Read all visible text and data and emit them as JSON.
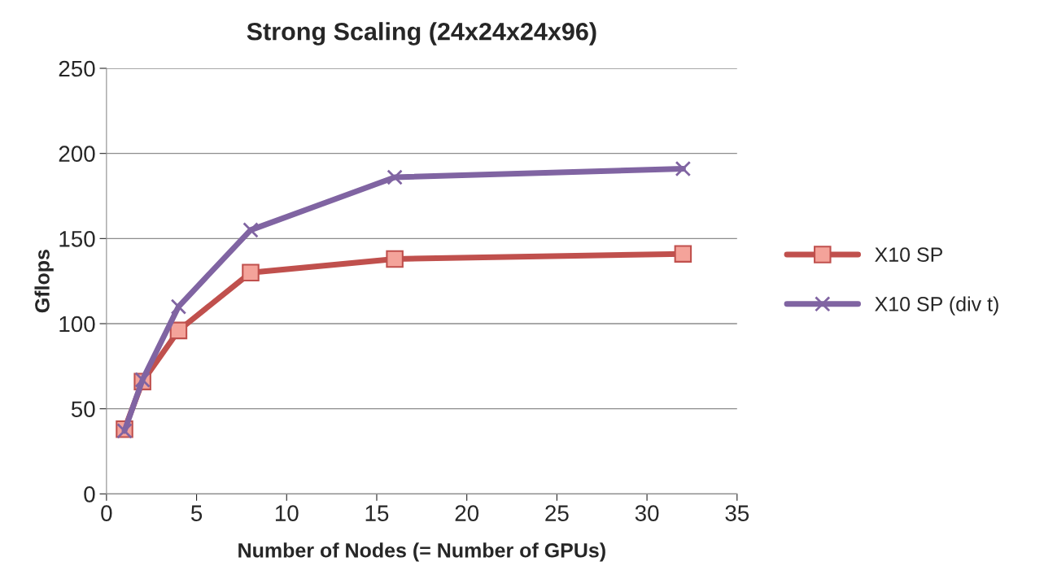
{
  "chart_data": {
    "type": "line",
    "title": "Strong Scaling (24x24x24x96)",
    "xlabel": "Number of Nodes (= Number of GPUs)",
    "ylabel": "Gflops",
    "x": [
      1,
      2,
      4,
      8,
      16,
      32
    ],
    "series": [
      {
        "name": "X10 SP",
        "color": "#c0504d",
        "marker": "square",
        "values": [
          38,
          66,
          96,
          130,
          138,
          141
        ]
      },
      {
        "name": "X10 SP (div t)",
        "color": "#8064a2",
        "marker": "cross",
        "values": [
          37,
          67,
          110,
          155,
          186,
          191
        ]
      }
    ],
    "xlim": [
      0,
      35
    ],
    "xticks": [
      0,
      5,
      10,
      15,
      20,
      25,
      30,
      35
    ],
    "ylim": [
      0,
      250
    ],
    "yticks": [
      0,
      50,
      100,
      150,
      200,
      250
    ],
    "grid": "y",
    "legend": "right",
    "line_style": "solid"
  }
}
